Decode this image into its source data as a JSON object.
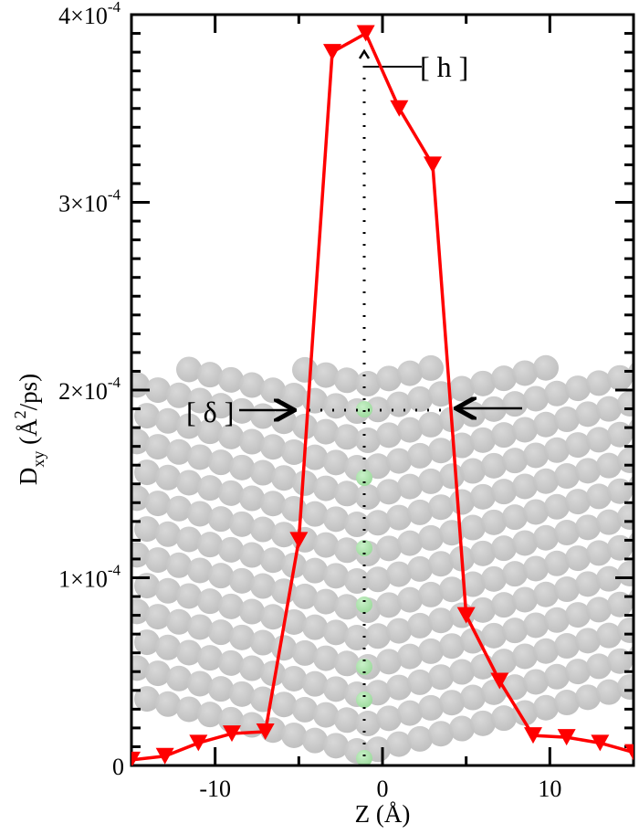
{
  "chart_data": {
    "type": "line",
    "title": "",
    "xlabel": "Z (Å)",
    "ylabel": "D_xy (Å²/ps)",
    "xlim": [
      -15,
      15
    ],
    "ylim": [
      0,
      0.0004
    ],
    "x_ticks": [
      -10,
      0,
      10
    ],
    "x_tick_labels": [
      "-10",
      "0",
      "10"
    ],
    "y_ticks": [
      0,
      0.0001,
      0.0002,
      0.0003,
      0.0004
    ],
    "y_tick_labels": [
      "0",
      "1×10⁻⁴",
      "2×10⁻⁴",
      "3×10⁻⁴",
      "4×10⁻⁴"
    ],
    "grid": false,
    "legend": null,
    "series": [
      {
        "name": "D_xy",
        "color": "#ff0000",
        "marker": "down-triangle",
        "x": [
          -15,
          -13,
          -11,
          -9,
          -7,
          -5,
          -3,
          -1,
          1,
          3,
          5,
          7,
          9,
          11,
          13,
          15
        ],
        "values": [
          3e-06,
          5e-06,
          1.2e-05,
          1.7e-05,
          1.8e-05,
          0.00012,
          0.00038,
          0.00039,
          0.00035,
          0.00032,
          8e-05,
          4.5e-05,
          1.6e-05,
          1.5e-05,
          1.2e-05,
          7e-06
        ]
      }
    ],
    "annotations": [
      {
        "text": "[ h ]",
        "type": "bracket-label",
        "target": "peak height arrow at Z≈-1"
      },
      {
        "text": "[ δ ]",
        "type": "bracket-label",
        "target": "width arrows at D≈1.9×10⁻⁴"
      }
    ],
    "background": "molecular snapshot of grey spheres with green atoms along Z≈-1 (lower half of plot)"
  },
  "axis": {
    "x_title": "Z (Å)",
    "y_title_main": "D",
    "y_title_sub": "xy",
    "y_title_rest": " (Å",
    "y_title_sup": "2",
    "y_title_end": "/ps)"
  },
  "annotations": {
    "h_label": "[ h ]",
    "delta_label": "[ δ ]"
  }
}
